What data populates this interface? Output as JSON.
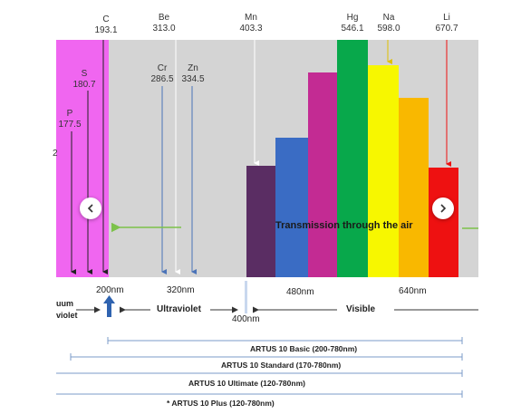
{
  "elements": [
    {
      "key": "c",
      "symbol": "C",
      "wavelength": "193.1"
    },
    {
      "key": "be",
      "symbol": "Be",
      "wavelength": "313.0"
    },
    {
      "key": "mn",
      "symbol": "Mn",
      "wavelength": "403.3"
    },
    {
      "key": "hg",
      "symbol": "Hg",
      "wavelength": "546.1"
    },
    {
      "key": "na",
      "symbol": "Na",
      "wavelength": "598.0"
    },
    {
      "key": "li",
      "symbol": "Li",
      "wavelength": "670.7"
    },
    {
      "key": "s",
      "symbol": "S",
      "wavelength": "180.7"
    },
    {
      "key": "p",
      "symbol": "P",
      "wavelength": "177.5"
    },
    {
      "key": "cr",
      "symbol": "Cr",
      "wavelength": "286.5"
    },
    {
      "key": "zn",
      "symbol": "Zn",
      "wavelength": "334.5"
    }
  ],
  "transmission_text": "Transmission through the air",
  "truncated_marker": "2",
  "axis_labels": {
    "nm200": "200nm",
    "nm320": "320nm",
    "nm400": "400nm",
    "nm480": "480nm",
    "nm640": "640nm"
  },
  "bands": {
    "vacuum_line1": "uum",
    "vacuum_line2": "violet",
    "ultraviolet": "Ultraviolet",
    "visible": "Visible"
  },
  "ranges": [
    {
      "label": "ARTUS 10 Basic (200-780nm)"
    },
    {
      "label": "ARTUS 10 Standard (170-780nm)"
    },
    {
      "label": "ARTUS 10 Ultimate (120-780nm)"
    },
    {
      "label": "* ARTUS 10 Plus (120-780nm)"
    }
  ],
  "colors": {
    "vacuum_zone": "#f066f0",
    "plot_bg": "#d4d4d4",
    "bar_violet": "#5a2d63",
    "bar_blue": "#3a6cc4",
    "bar_magenta": "#c32b93",
    "bar_green": "#08a84b",
    "bar_yellow": "#f7f700",
    "bar_orange": "#f9b800",
    "bar_red": "#ee1111",
    "arrow_green": "#7cc24a",
    "range_line": "#7b9bc9",
    "accent_blue": "#2f63b0"
  },
  "icons": {
    "prev": "chevron-left-icon",
    "next": "chevron-right-icon"
  }
}
